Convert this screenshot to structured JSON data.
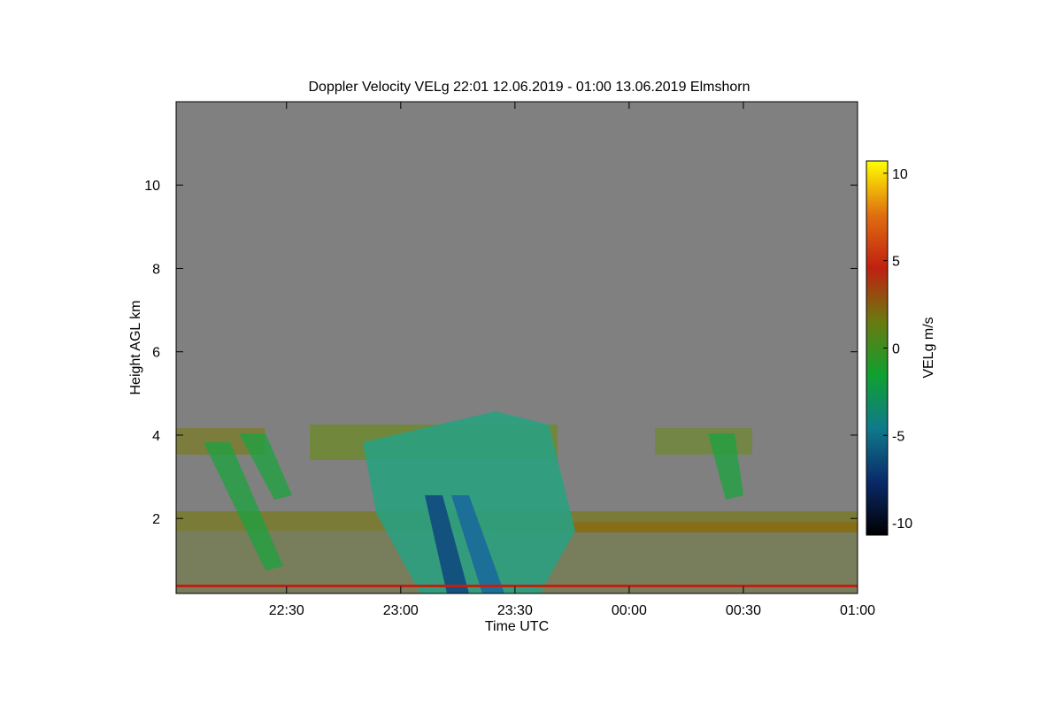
{
  "chart_data": {
    "type": "heatmap",
    "title": "Doppler Velocity VELg   22:01 12.06.2019 - 01:00 13.06.2019 Elmshorn",
    "x_label": "Time UTC",
    "y_label": "Height AGL km",
    "colorbar_label": "VELg m/s",
    "xlim": [
      1,
      180
    ],
    "xticks": [
      {
        "value": 30,
        "label": "22:30"
      },
      {
        "value": 60,
        "label": "23:00"
      },
      {
        "value": 90,
        "label": "23:30"
      },
      {
        "value": 120,
        "label": "00:00"
      },
      {
        "value": 150,
        "label": "00:30"
      },
      {
        "value": 180,
        "label": "01:00"
      }
    ],
    "ylim": [
      0.2,
      12
    ],
    "yticks": [
      2,
      4,
      6,
      8,
      10
    ],
    "clim": [
      -10.7,
      10.7
    ],
    "cticks": [
      -10,
      -5,
      0,
      5,
      10
    ],
    "colormap": [
      "#000000",
      "#0a2a6a",
      "#0f7a8a",
      "#10a030",
      "#6a7a10",
      "#c02010",
      "#e07010",
      "#ffff00"
    ],
    "background": "#808080"
  }
}
